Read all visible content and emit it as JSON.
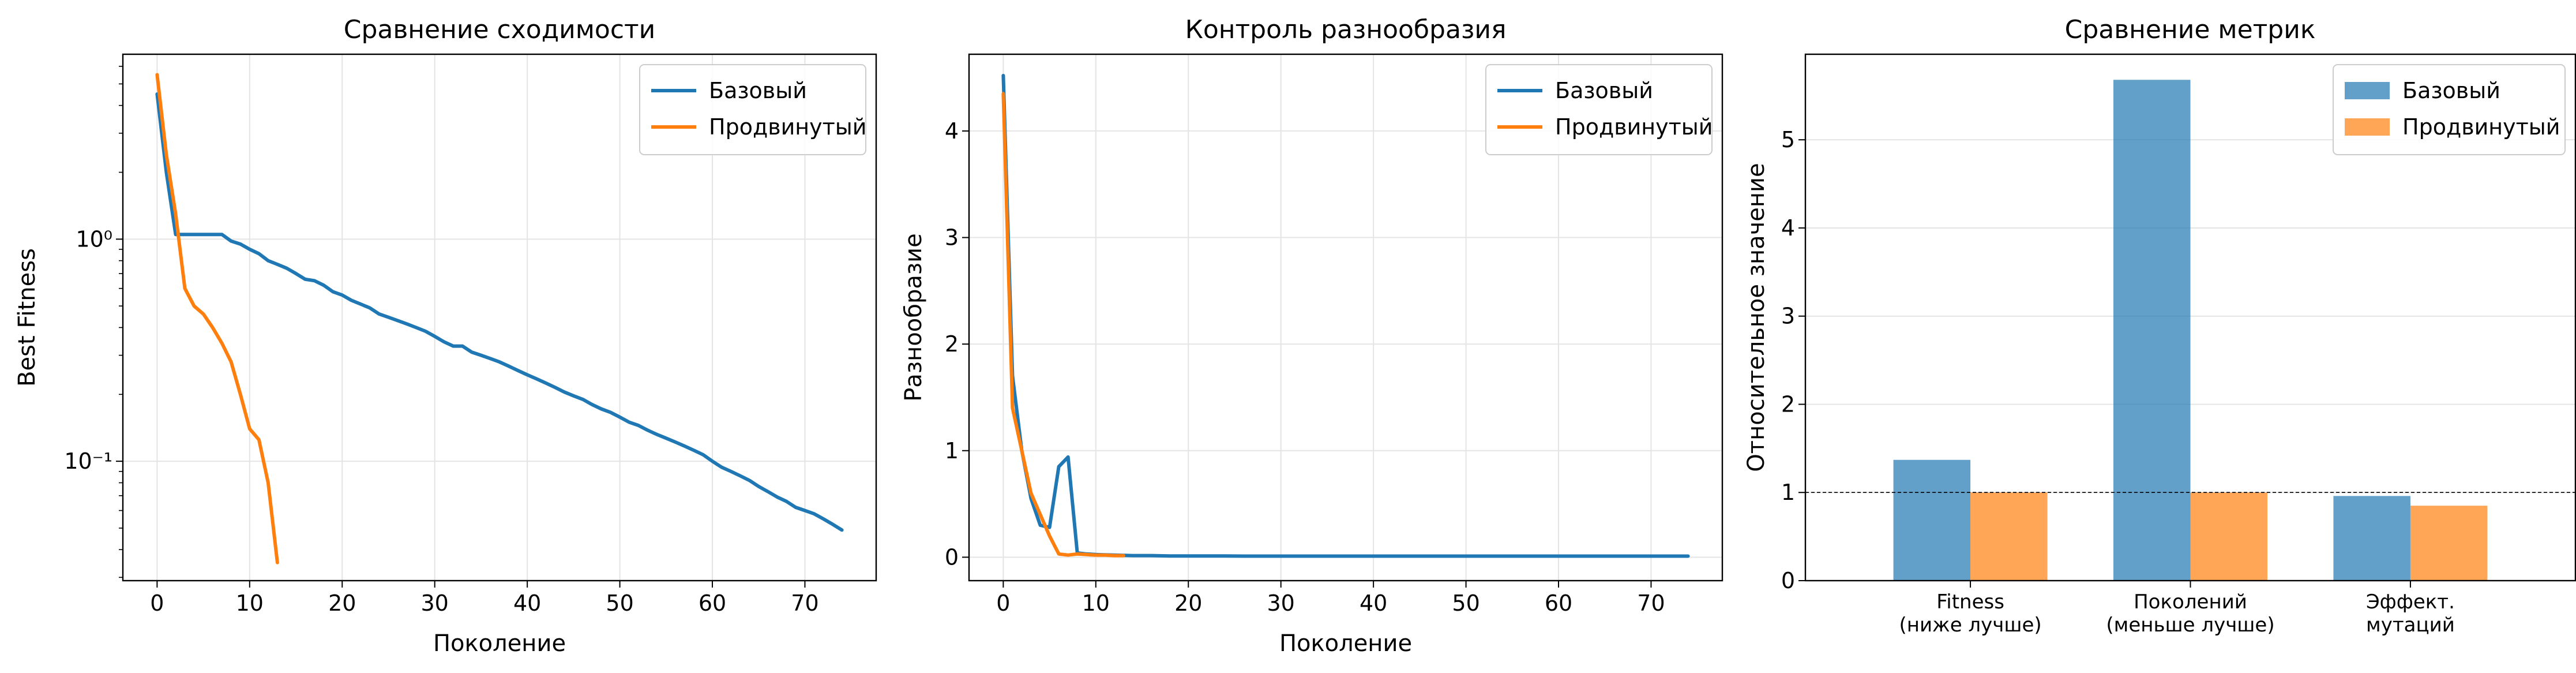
{
  "chart_data": [
    {
      "type": "line",
      "title": "Сравнение сходимости",
      "xlabel": "Поколение",
      "ylabel": "Best Fitness",
      "yscale": "log",
      "xlim": [
        -3.7,
        77.7
      ],
      "ylim": [
        0.029,
        6.8
      ],
      "xticks": [
        0,
        10,
        20,
        30,
        40,
        50,
        60,
        70
      ],
      "xtick_labels": [
        "0",
        "10",
        "20",
        "30",
        "40",
        "50",
        "60",
        "70"
      ],
      "yticks": [
        0.1,
        1
      ],
      "ytick_labels": [
        "10⁻¹",
        "10⁰"
      ],
      "grid": true,
      "legend": "top-right",
      "series": [
        {
          "name": "Базовый",
          "color": "#1f77b4",
          "x": [
            0,
            1,
            2,
            3,
            4,
            5,
            6,
            7,
            8,
            9,
            10,
            11,
            12,
            13,
            14,
            15,
            16,
            17,
            18,
            19,
            20,
            21,
            22,
            23,
            24,
            25,
            26,
            27,
            28,
            29,
            30,
            31,
            32,
            33,
            34,
            35,
            36,
            37,
            38,
            39,
            40,
            41,
            42,
            43,
            44,
            45,
            46,
            47,
            48,
            49,
            50,
            51,
            52,
            53,
            54,
            55,
            56,
            57,
            58,
            59,
            60,
            61,
            62,
            63,
            64,
            65,
            66,
            67,
            68,
            69,
            70,
            71,
            72,
            73,
            74
          ],
          "y": [
            4.5,
            2.0,
            1.05,
            1.05,
            1.05,
            1.05,
            1.05,
            1.05,
            0.98,
            0.95,
            0.9,
            0.86,
            0.8,
            0.77,
            0.74,
            0.7,
            0.66,
            0.65,
            0.62,
            0.58,
            0.56,
            0.53,
            0.51,
            0.49,
            0.46,
            0.445,
            0.43,
            0.415,
            0.4,
            0.385,
            0.365,
            0.345,
            0.33,
            0.33,
            0.31,
            0.3,
            0.29,
            0.28,
            0.268,
            0.256,
            0.245,
            0.235,
            0.225,
            0.215,
            0.205,
            0.197,
            0.19,
            0.18,
            0.172,
            0.166,
            0.158,
            0.15,
            0.145,
            0.138,
            0.132,
            0.127,
            0.122,
            0.117,
            0.112,
            0.107,
            0.1,
            0.094,
            0.09,
            0.086,
            0.082,
            0.077,
            0.073,
            0.069,
            0.066,
            0.062,
            0.06,
            0.058,
            0.055,
            0.052,
            0.049
          ]
        },
        {
          "name": "Продвинутый",
          "color": "#ff7f0e",
          "x": [
            0,
            1,
            2,
            3,
            4,
            5,
            6,
            7,
            8,
            9,
            10,
            11,
            12,
            13
          ],
          "y": [
            5.5,
            2.4,
            1.3,
            0.6,
            0.5,
            0.46,
            0.4,
            0.34,
            0.28,
            0.2,
            0.14,
            0.125,
            0.08,
            0.035
          ]
        }
      ]
    },
    {
      "type": "line",
      "title": "Контроль разнообразия",
      "xlabel": "Поколение",
      "ylabel": "Разнообразие",
      "xlim": [
        -3.7,
        77.7
      ],
      "ylim": [
        -0.22,
        4.72
      ],
      "xticks": [
        0,
        10,
        20,
        30,
        40,
        50,
        60,
        70
      ],
      "xtick_labels": [
        "0",
        "10",
        "20",
        "30",
        "40",
        "50",
        "60",
        "70"
      ],
      "yticks": [
        0,
        1,
        2,
        3,
        4
      ],
      "ytick_labels": [
        "0",
        "1",
        "2",
        "3",
        "4"
      ],
      "grid": true,
      "legend": "top-right",
      "series": [
        {
          "name": "Базовый",
          "color": "#1f77b4",
          "x": [
            0,
            1,
            2,
            3,
            4,
            5,
            6,
            7,
            8,
            9,
            10,
            12,
            14,
            16,
            18,
            20,
            22,
            24,
            26,
            28,
            30,
            34,
            38,
            42,
            46,
            50,
            54,
            58,
            62,
            66,
            70,
            74
          ],
          "y": [
            4.52,
            1.7,
            1.0,
            0.55,
            0.3,
            0.28,
            0.85,
            0.94,
            0.04,
            0.03,
            0.025,
            0.02,
            0.015,
            0.015,
            0.012,
            0.012,
            0.012,
            0.012,
            0.01,
            0.01,
            0.01,
            0.01,
            0.01,
            0.01,
            0.01,
            0.01,
            0.01,
            0.01,
            0.01,
            0.01,
            0.01,
            0.01
          ]
        },
        {
          "name": "Продвинутый",
          "color": "#ff7f0e",
          "x": [
            0,
            1,
            2,
            3,
            4,
            5,
            6,
            7,
            8,
            9,
            10,
            11,
            12,
            13
          ],
          "y": [
            4.35,
            1.4,
            1.0,
            0.6,
            0.4,
            0.2,
            0.03,
            0.02,
            0.03,
            0.025,
            0.02,
            0.02,
            0.015,
            0.015
          ]
        }
      ]
    },
    {
      "type": "bar",
      "title": "Сравнение метрик",
      "xlabel": "",
      "ylabel": "Относительное значение",
      "categories": [
        "Fitness\n(ниже лучше)",
        "Поколений\n(меньше лучше)",
        "Эффект.\nмутаций"
      ],
      "ylim": [
        0,
        5.97
      ],
      "yticks": [
        0,
        1,
        2,
        3,
        4,
        5
      ],
      "ytick_labels": [
        "0",
        "1",
        "2",
        "3",
        "4",
        "5"
      ],
      "reference_line": 1,
      "grid": true,
      "legend": "top-right",
      "series": [
        {
          "name": "Базовый",
          "color": "#1f77b4",
          "values": [
            1.37,
            5.68,
            0.96
          ]
        },
        {
          "name": "Продвинутый",
          "color": "#ff7f0e",
          "values": [
            1.0,
            1.0,
            0.85
          ]
        }
      ]
    }
  ]
}
